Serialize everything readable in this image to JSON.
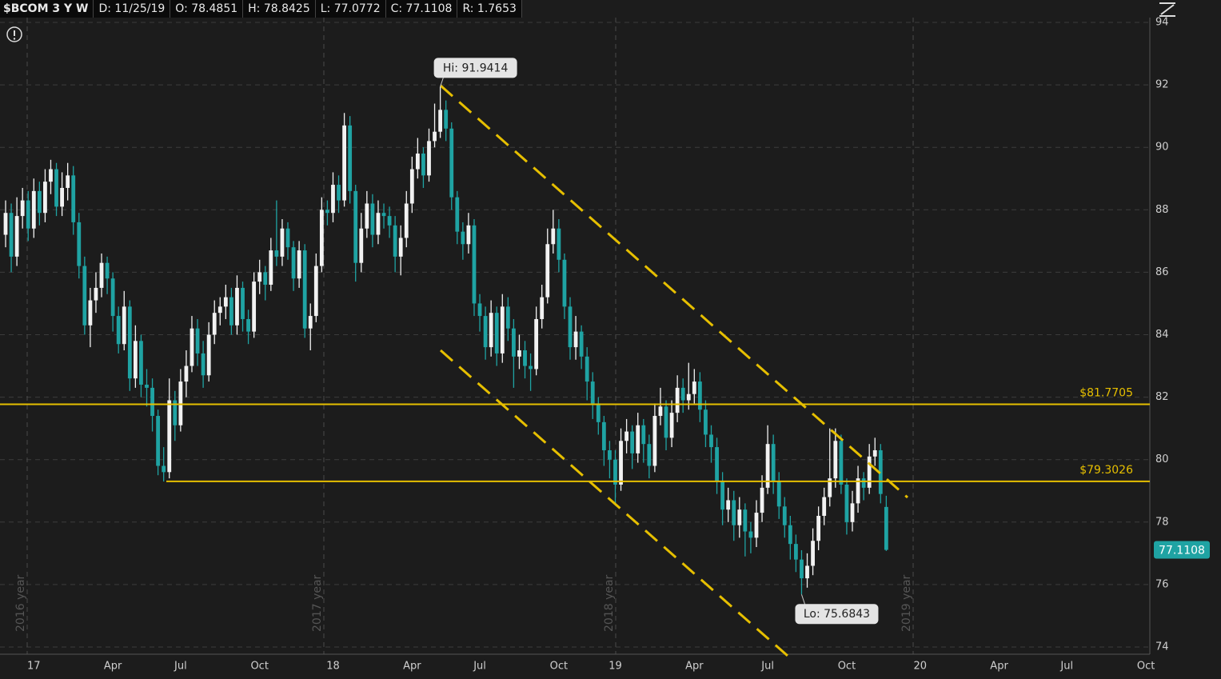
{
  "header": {
    "symbol": "$BCOM 3 Y W",
    "items": [
      "D: 11/25/19",
      "O: 78.4851",
      "H: 78.8425",
      "L: 77.0772",
      "C: 77.1108",
      "R: 1.7653"
    ]
  },
  "chart_data": {
    "type": "candlestick",
    "categories": [
      null,
      null,
      null,
      null,
      null,
      "17",
      null,
      null,
      null,
      null,
      null,
      null,
      null,
      null,
      null,
      null,
      null,
      null,
      null,
      "Apr",
      null,
      null,
      null,
      null,
      null,
      null,
      null,
      null,
      null,
      null,
      null,
      "Jul",
      null,
      null,
      null,
      null,
      null,
      null,
      null,
      null,
      null,
      null,
      null,
      null,
      null,
      "Oct",
      null,
      null,
      null,
      null,
      null,
      null,
      null,
      null,
      null,
      null,
      null,
      null,
      "18",
      null,
      null,
      null,
      null,
      null,
      null,
      null,
      null,
      null,
      null,
      null,
      null,
      null,
      "Apr",
      null,
      null,
      null,
      null,
      null,
      null,
      null,
      null,
      null,
      null,
      null,
      "Jul",
      null,
      null,
      null,
      null,
      null,
      null,
      null,
      null,
      null,
      null,
      null,
      null,
      null,
      "Oct",
      null,
      null,
      null,
      null,
      null,
      null,
      null,
      null,
      null,
      "19",
      null,
      null,
      null,
      null,
      null,
      null,
      null,
      null,
      null,
      null,
      null,
      null,
      null,
      "Apr",
      null,
      null,
      null,
      null,
      null,
      null,
      null,
      null,
      null,
      null,
      null,
      null,
      "Jul",
      null,
      null,
      null,
      null,
      null,
      null,
      null,
      null,
      null,
      null,
      null,
      null,
      null,
      "Oct",
      null,
      null,
      null,
      null,
      null,
      null,
      null,
      null,
      null,
      null,
      null,
      null,
      "20",
      null,
      null,
      null,
      null,
      null,
      null,
      null,
      null,
      null,
      null,
      null,
      null,
      null,
      "Apr",
      null,
      null,
      null,
      null,
      null,
      null,
      null,
      null,
      null,
      null,
      null,
      "Jul",
      null,
      null,
      null,
      null,
      null,
      null,
      null,
      null,
      null,
      null,
      null,
      null,
      null,
      "Oct",
      null
    ],
    "open": [
      87.2,
      87.9,
      86.5,
      87.8,
      88.3,
      87.4,
      88.6,
      87.9,
      88.9,
      89.3,
      88.1,
      88.7,
      89.1,
      87.6,
      86.2,
      84.3,
      85.1,
      85.5,
      86.3,
      85.8,
      84.6,
      83.7,
      84.9,
      82.6,
      83.8,
      82.4,
      82.3,
      81.4,
      79.8,
      79.6,
      81.9,
      81.1,
      82.5,
      83.0,
      84.2,
      83.4,
      82.7,
      84.0,
      84.7,
      84.9,
      85.2,
      84.3,
      85.5,
      84.5,
      84.1,
      85.7,
      86.0,
      85.6,
      86.7,
      86.5,
      87.4,
      86.8,
      85.8,
      86.7,
      84.2,
      84.6,
      86.2,
      88.0,
      87.9,
      88.8,
      88.3,
      90.7,
      88.6,
      86.3,
      87.4,
      88.2,
      87.2,
      87.9,
      87.8,
      87.5,
      86.5,
      87.1,
      88.2,
      89.3,
      89.8,
      89.1,
      90.2,
      90.5,
      91.2,
      90.6,
      88.4,
      87.3,
      86.9,
      87.5,
      85.0,
      84.6,
      83.6,
      84.7,
      83.4,
      84.9,
      84.2,
      83.3,
      83.5,
      83.0,
      82.9,
      84.5,
      85.2,
      86.9,
      87.4,
      86.4,
      84.9,
      83.6,
      84.1,
      83.3,
      82.5,
      81.8,
      81.2,
      80.3,
      80.0,
      79.2,
      80.6,
      80.9,
      80.2,
      81.1,
      80.5,
      79.8,
      81.4,
      81.7,
      80.7,
      81.5,
      82.3,
      81.9,
      82.1,
      82.5,
      81.6,
      80.8,
      80.4,
      79.3,
      78.4,
      78.7,
      77.9,
      78.4,
      77.7,
      77.5,
      78.3,
      79.1,
      80.5,
      79.3,
      78.5,
      77.9,
      77.3,
      76.8,
      76.2,
      76.6,
      77.4,
      78.2,
      78.8,
      79.4,
      80.6,
      79.2,
      78.0,
      78.6,
      79.4,
      79.1,
      80.1,
      80.3,
      78.4851,
      null,
      null,
      null,
      null,
      null,
      null,
      null,
      null,
      null,
      null,
      null,
      null,
      null,
      null,
      null,
      null,
      null,
      null,
      null,
      null,
      null,
      null,
      null,
      null,
      null,
      null,
      null,
      null,
      null,
      null,
      null,
      null,
      null,
      null,
      null,
      null,
      null,
      null,
      null,
      null,
      null,
      null,
      null,
      null,
      null,
      null,
      null
    ],
    "high": [
      88.3,
      88.2,
      88.4,
      88.7,
      88.6,
      89.0,
      88.9,
      89.3,
      89.6,
      89.5,
      89.2,
      89.5,
      89.4,
      87.9,
      86.5,
      85.5,
      86.0,
      86.6,
      86.5,
      86.0,
      84.9,
      85.4,
      85.1,
      84.3,
      84.0,
      82.9,
      82.6,
      81.6,
      80.4,
      82.6,
      82.2,
      82.9,
      83.5,
      84.6,
      84.5,
      83.8,
      84.4,
      85.1,
      85.2,
      85.6,
      85.5,
      85.9,
      85.7,
      84.8,
      86.0,
      86.4,
      86.2,
      87.1,
      88.3,
      87.7,
      87.6,
      87.0,
      87.0,
      86.9,
      85.0,
      86.6,
      88.4,
      88.3,
      89.2,
      89.1,
      91.1,
      91.0,
      88.8,
      87.9,
      88.6,
      88.5,
      88.3,
      88.2,
      88.1,
      87.8,
      87.5,
      88.6,
      89.7,
      90.3,
      90.0,
      90.6,
      91.4,
      91.9414,
      91.5,
      90.8,
      88.6,
      87.6,
      87.9,
      87.7,
      85.3,
      84.9,
      85.1,
      84.9,
      85.3,
      85.2,
      84.5,
      84.0,
      83.8,
      83.4,
      84.9,
      85.6,
      87.4,
      88.0,
      87.7,
      86.6,
      85.2,
      84.6,
      84.3,
      83.6,
      82.8,
      82.0,
      81.4,
      80.6,
      80.3,
      81.0,
      81.3,
      81.1,
      81.5,
      81.3,
      80.8,
      81.8,
      82.3,
      81.9,
      81.9,
      82.7,
      82.6,
      83.1,
      82.9,
      82.8,
      81.9,
      81.1,
      80.7,
      79.6,
      79.1,
      79.0,
      78.8,
      78.6,
      78.0,
      78.7,
      79.5,
      81.1,
      80.8,
      79.6,
      78.8,
      78.2,
      77.6,
      77.1,
      77.0,
      77.8,
      78.5,
      79.1,
      81.0,
      81.0,
      80.8,
      79.4,
      79.0,
      79.8,
      79.6,
      80.5,
      80.7,
      80.5,
      78.8425,
      null,
      null,
      null,
      null,
      null,
      null,
      null,
      null,
      null,
      null,
      null,
      null,
      null,
      null,
      null,
      null,
      null,
      null,
      null,
      null,
      null,
      null,
      null,
      null,
      null,
      null,
      null,
      null,
      null,
      null,
      null,
      null,
      null,
      null,
      null,
      null,
      null,
      null,
      null,
      null,
      null,
      null,
      null,
      null,
      null,
      null,
      null
    ],
    "low": [
      86.8,
      86.0,
      86.2,
      87.4,
      87.0,
      87.1,
      87.5,
      87.6,
      88.5,
      87.8,
      87.8,
      88.3,
      87.2,
      85.8,
      84.0,
      83.6,
      84.7,
      85.2,
      85.3,
      84.1,
      83.4,
      83.5,
      82.2,
      82.3,
      82.0,
      81.7,
      80.9,
      79.5,
      79.3,
      79.4,
      80.6,
      80.9,
      82.0,
      82.8,
      83.0,
      82.3,
      82.5,
      83.7,
      84.3,
      84.5,
      84.0,
      84.0,
      84.1,
      83.7,
      83.9,
      85.3,
      85.1,
      85.4,
      86.2,
      86.2,
      86.4,
      85.4,
      85.5,
      83.9,
      83.5,
      84.4,
      86.0,
      87.5,
      87.6,
      87.9,
      88.1,
      88.2,
      85.7,
      86.0,
      87.1,
      86.8,
      86.9,
      87.4,
      87.1,
      86.0,
      85.9,
      86.8,
      87.9,
      89.0,
      88.7,
      88.9,
      90.0,
      90.3,
      90.2,
      88.0,
      86.9,
      86.4,
      86.6,
      84.6,
      84.1,
      83.2,
      83.3,
      83.0,
      83.1,
      83.8,
      82.3,
      82.9,
      82.6,
      82.2,
      82.7,
      84.2,
      85.0,
      86.6,
      86.0,
      84.5,
      83.2,
      83.2,
      82.9,
      81.9,
      81.3,
      80.8,
      79.8,
      79.4,
      78.6,
      79.0,
      80.2,
      79.7,
      79.9,
      79.9,
      79.4,
      79.6,
      81.1,
      80.3,
      80.4,
      81.2,
      81.5,
      81.6,
      81.8,
      81.2,
      80.4,
      79.9,
      78.9,
      77.9,
      78.0,
      77.4,
      77.5,
      76.9,
      77.0,
      77.2,
      78.0,
      78.9,
      78.9,
      78.1,
      77.5,
      76.8,
      76.4,
      75.6843,
      75.9,
      76.3,
      77.1,
      77.9,
      78.5,
      79.1,
      78.9,
      77.6,
      77.7,
      78.3,
      78.7,
      78.9,
      79.8,
      78.6,
      77.0772,
      null,
      null,
      null,
      null,
      null,
      null,
      null,
      null,
      null,
      null,
      null,
      null,
      null,
      null,
      null,
      null,
      null,
      null,
      null,
      null,
      null,
      null,
      null,
      null,
      null,
      null,
      null,
      null,
      null,
      null,
      null,
      null,
      null,
      null,
      null,
      null,
      null,
      null,
      null,
      null,
      null,
      null,
      null,
      null,
      null,
      null,
      null
    ],
    "close": [
      87.9,
      86.5,
      87.8,
      88.3,
      87.4,
      88.6,
      87.9,
      88.9,
      89.3,
      88.1,
      88.7,
      89.1,
      87.6,
      86.2,
      84.3,
      85.1,
      85.5,
      86.3,
      85.8,
      84.6,
      83.7,
      84.9,
      82.6,
      83.8,
      82.4,
      82.3,
      81.4,
      79.8,
      79.6,
      81.9,
      81.1,
      82.5,
      83.0,
      84.2,
      83.4,
      82.7,
      84.0,
      84.7,
      84.9,
      85.2,
      84.3,
      85.5,
      84.5,
      84.1,
      85.7,
      86.0,
      85.6,
      86.7,
      86.5,
      87.4,
      86.8,
      85.8,
      86.7,
      84.2,
      84.6,
      86.2,
      88.0,
      87.9,
      88.8,
      88.3,
      90.7,
      88.6,
      86.3,
      87.4,
      88.2,
      87.2,
      87.9,
      87.8,
      87.5,
      86.5,
      87.1,
      88.2,
      89.3,
      89.8,
      89.1,
      90.2,
      90.5,
      91.2,
      90.6,
      88.4,
      87.3,
      86.9,
      87.5,
      85.0,
      84.6,
      83.6,
      84.7,
      83.4,
      84.9,
      84.2,
      83.3,
      83.5,
      83.0,
      82.9,
      84.5,
      85.2,
      86.9,
      87.4,
      86.4,
      84.9,
      83.6,
      84.1,
      83.3,
      82.5,
      81.8,
      81.2,
      80.3,
      80.0,
      79.2,
      80.6,
      80.9,
      80.2,
      81.1,
      80.5,
      79.8,
      81.4,
      81.7,
      80.7,
      81.5,
      82.3,
      81.9,
      82.1,
      82.5,
      81.6,
      80.8,
      80.4,
      79.3,
      78.4,
      78.7,
      77.9,
      78.4,
      77.7,
      77.5,
      78.3,
      79.1,
      80.5,
      79.3,
      78.5,
      77.9,
      77.3,
      76.8,
      76.2,
      76.6,
      77.4,
      78.2,
      78.8,
      79.4,
      80.6,
      79.2,
      78.0,
      78.6,
      79.4,
      79.1,
      80.1,
      80.3,
      78.9,
      77.1108,
      null,
      null,
      null,
      null,
      null,
      null,
      null,
      null,
      null,
      null,
      null,
      null,
      null,
      null,
      null,
      null,
      null,
      null,
      null,
      null,
      null,
      null,
      null,
      null,
      null,
      null,
      null,
      null,
      null,
      null,
      null,
      null,
      null,
      null,
      null,
      null,
      null,
      null,
      null,
      null,
      null,
      null,
      null,
      null,
      null,
      null,
      null
    ],
    "up_color": "#f2f2f2",
    "down_color": "#1fa3a3",
    "ylim": [
      74,
      94
    ],
    "yticks": [
      74,
      76,
      78,
      80,
      82,
      84,
      86,
      88,
      90,
      92,
      94
    ],
    "grid": true,
    "levels": [
      {
        "value": 81.7705,
        "label": "$81.7705"
      },
      {
        "value": 79.3026,
        "label": "$79.3026"
      }
    ],
    "level_color": "#e6bf00",
    "high_label": "Hi: 91.9414",
    "low_label": "Lo: 75.6843",
    "last_price": 77.1108,
    "year_labels": [
      "2016 year",
      "2017 year",
      "2018 year",
      "2019 year"
    ]
  }
}
